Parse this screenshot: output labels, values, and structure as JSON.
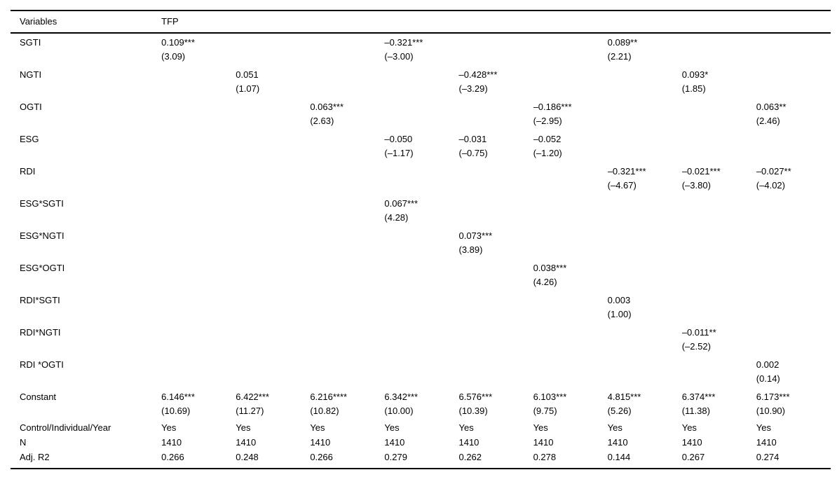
{
  "page": {
    "background_color": "#ffffff",
    "text_color": "#000000",
    "rule_color": "#000000"
  },
  "table": {
    "title_col_header": "Variables",
    "dependent_var_header": "TFP",
    "num_model_columns": 9,
    "rows": [
      {
        "label": "SGTI",
        "cells": [
          {
            "coef": "0.109***",
            "t": "(3.09)"
          },
          null,
          null,
          {
            "coef": "–0.321***",
            "t": "(–3.00)"
          },
          null,
          null,
          {
            "coef": "0.089**",
            "t": "(2.21)"
          },
          null,
          null
        ]
      },
      {
        "label": "NGTI",
        "cells": [
          null,
          {
            "coef": "0.051",
            "t": "(1.07)"
          },
          null,
          null,
          {
            "coef": "–0.428***",
            "t": "(–3.29)"
          },
          null,
          null,
          {
            "coef": "0.093*",
            "t": "(1.85)"
          },
          null
        ]
      },
      {
        "label": "OGTI",
        "cells": [
          null,
          null,
          {
            "coef": "0.063***",
            "t": "(2.63)"
          },
          null,
          null,
          {
            "coef": "–0.186***",
            "t": "(–2.95)"
          },
          null,
          null,
          {
            "coef": "0.063**",
            "t": "(2.46)"
          }
        ]
      },
      {
        "label": "ESG",
        "cells": [
          null,
          null,
          null,
          {
            "coef": "–0.050",
            "t": "(–1.17)"
          },
          {
            "coef": "–0.031",
            "t": "(–0.75)"
          },
          {
            "coef": "–0.052",
            "t": "(–1.20)"
          },
          null,
          null,
          null
        ]
      },
      {
        "label": "RDI",
        "cells": [
          null,
          null,
          null,
          null,
          null,
          null,
          {
            "coef": "–0.321***",
            "t": "(–4.67)"
          },
          {
            "coef": "–0.021***",
            "t": "(–3.80)"
          },
          {
            "coef": "–0.027**",
            "t": "(–4.02)"
          }
        ]
      },
      {
        "label": "ESG*SGTI",
        "cells": [
          null,
          null,
          null,
          {
            "coef": "0.067***",
            "t": "(4.28)"
          },
          null,
          null,
          null,
          null,
          null
        ]
      },
      {
        "label": "ESG*NGTI",
        "cells": [
          null,
          null,
          null,
          null,
          {
            "coef": "0.073***",
            "t": "(3.89)"
          },
          null,
          null,
          null,
          null
        ]
      },
      {
        "label": "ESG*OGTI",
        "cells": [
          null,
          null,
          null,
          null,
          null,
          {
            "coef": "0.038***",
            "t": "(4.26)"
          },
          null,
          null,
          null
        ]
      },
      {
        "label": "RDI*SGTI",
        "cells": [
          null,
          null,
          null,
          null,
          null,
          null,
          {
            "coef": "0.003",
            "t": "(1.00)"
          },
          null,
          null
        ]
      },
      {
        "label": "RDI*NGTI",
        "cells": [
          null,
          null,
          null,
          null,
          null,
          null,
          null,
          {
            "coef": "–0.011**",
            "t": "(–2.52)"
          },
          null
        ]
      },
      {
        "label": "RDI *OGTI",
        "cells": [
          null,
          null,
          null,
          null,
          null,
          null,
          null,
          null,
          {
            "coef": "0.002",
            "t": "(0.14)"
          }
        ]
      },
      {
        "label": "Constant",
        "cells": [
          {
            "coef": "6.146***",
            "t": "(10.69)"
          },
          {
            "coef": "6.422***",
            "t": "(11.27)"
          },
          {
            "coef": "6.216****",
            "t": "(10.82)"
          },
          {
            "coef": "6.342***",
            "t": "(10.00)"
          },
          {
            "coef": "6.576***",
            "t": "(10.39)"
          },
          {
            "coef": "6.103***",
            "t": "(9.75)"
          },
          {
            "coef": "4.815***",
            "t": "(5.26)"
          },
          {
            "coef": "6.374***",
            "t": "(11.38)"
          },
          {
            "coef": "6.173***",
            "t": "(10.90)"
          }
        ]
      }
    ],
    "footer_rows": [
      {
        "label": "Control/Individual/Year",
        "values": [
          "Yes",
          "Yes",
          "Yes",
          "Yes",
          "Yes",
          "Yes",
          "Yes",
          "Yes",
          "Yes"
        ]
      },
      {
        "label": "N",
        "values": [
          "1410",
          "1410",
          "1410",
          "1410",
          "1410",
          "1410",
          "1410",
          "1410",
          "1410"
        ]
      },
      {
        "label": "Adj. R2",
        "values": [
          "0.266",
          "0.248",
          "0.266",
          "0.279",
          "0.262",
          "0.278",
          "0.144",
          "0.267",
          "0.274"
        ]
      }
    ]
  }
}
